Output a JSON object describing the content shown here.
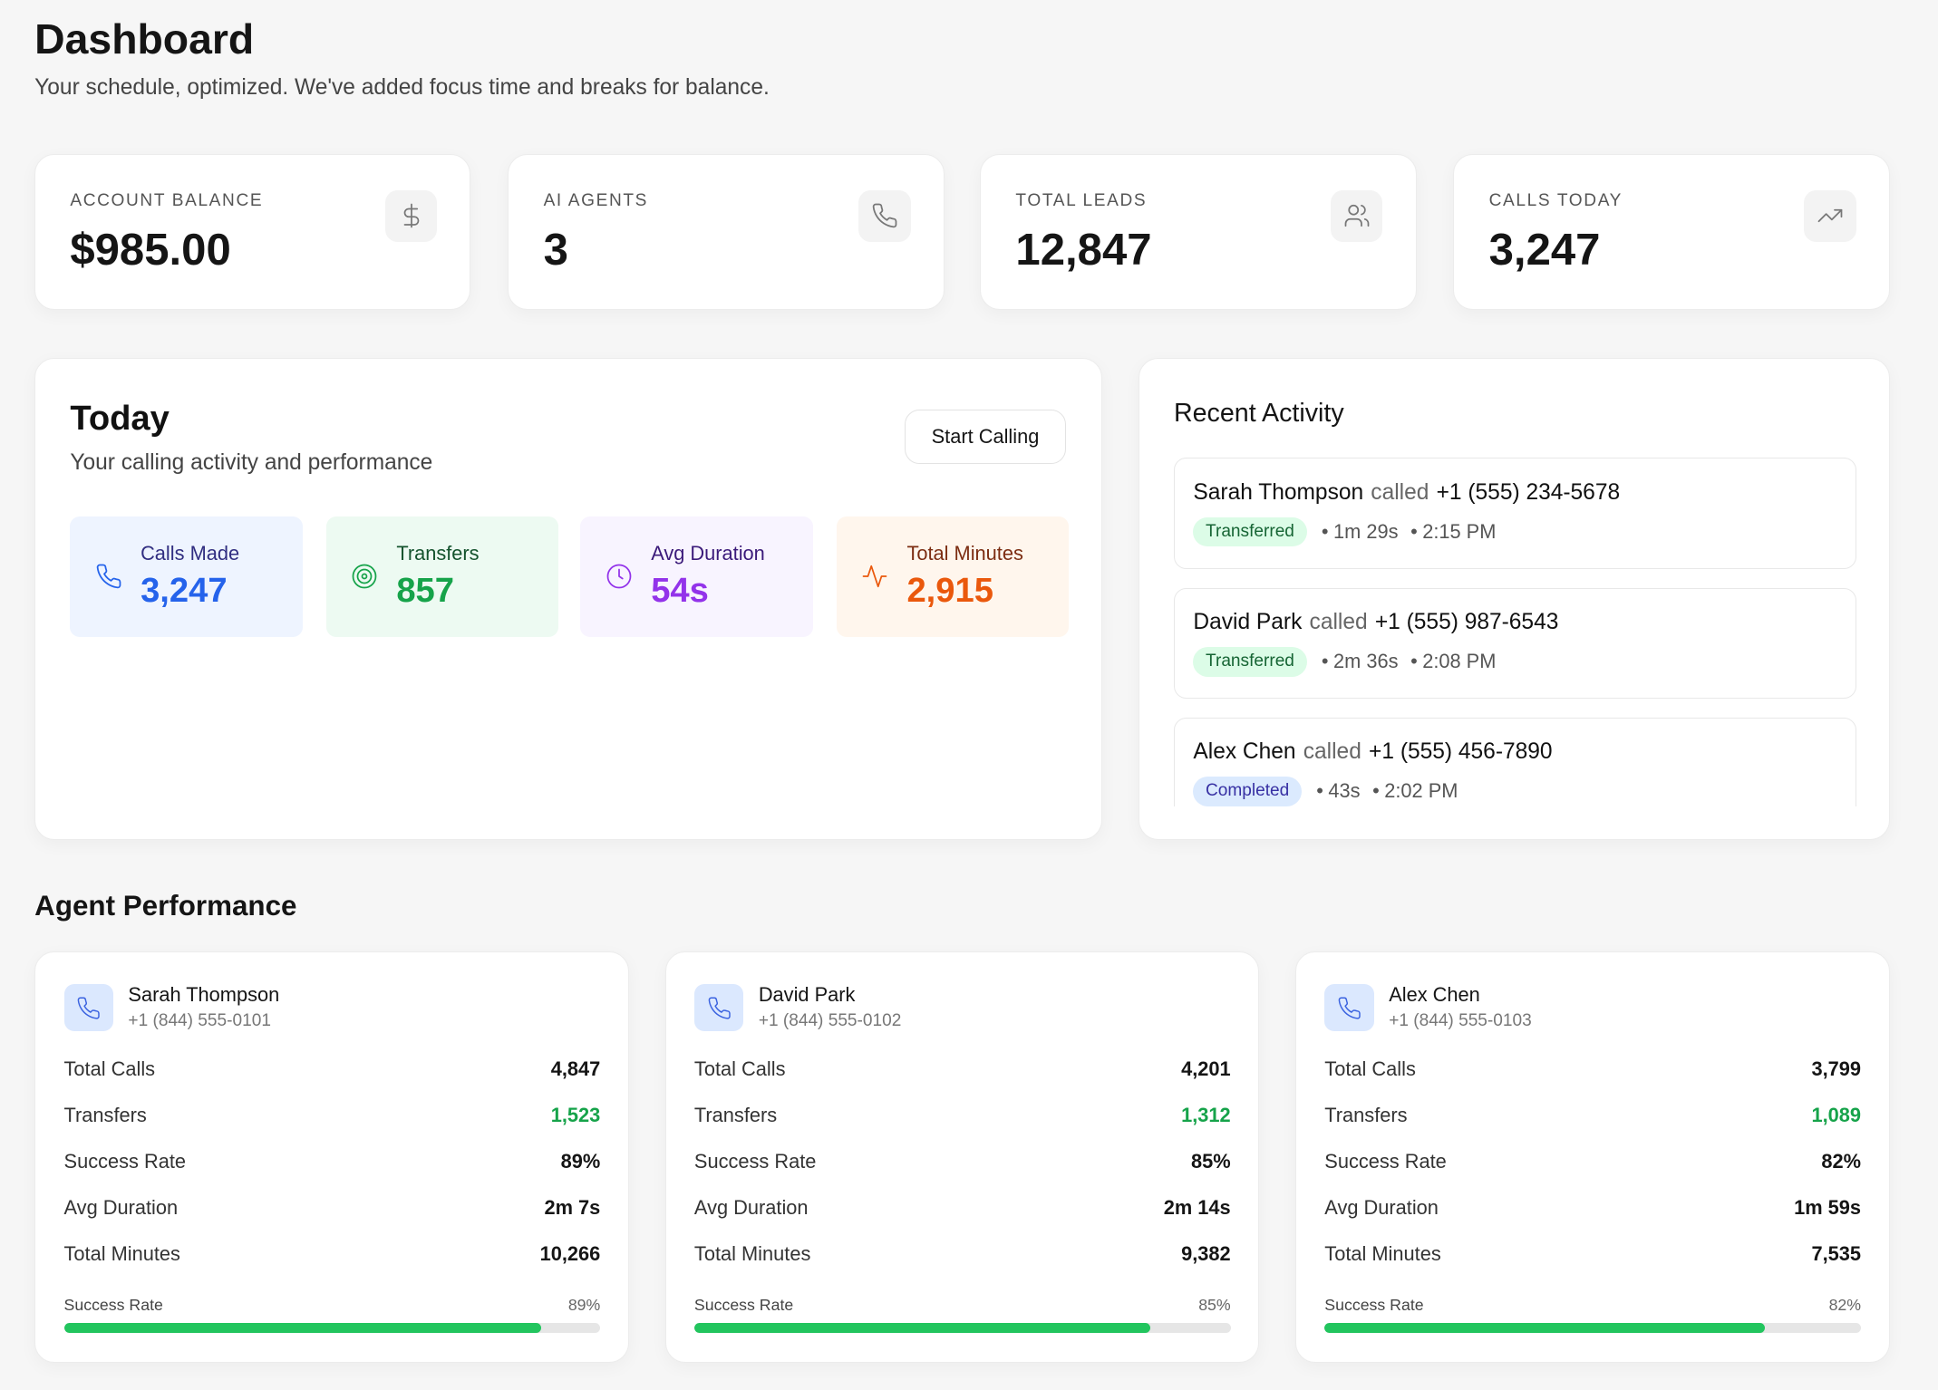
{
  "header": {
    "title": "Dashboard",
    "subtitle": "Your schedule, optimized. We've added focus time and breaks for balance."
  },
  "stats": [
    {
      "label": "ACCOUNT BALANCE",
      "value": "$985.00",
      "icon": "dollar-icon"
    },
    {
      "label": "AI AGENTS",
      "value": "3",
      "icon": "phone-icon"
    },
    {
      "label": "TOTAL LEADS",
      "value": "12,847",
      "icon": "users-icon"
    },
    {
      "label": "CALLS TODAY",
      "value": "3,247",
      "icon": "trending-up-icon"
    }
  ],
  "today": {
    "title": "Today",
    "subtitle": "Your calling activity and performance",
    "button": "Start Calling",
    "metrics": [
      {
        "label": "Calls Made",
        "value": "3,247",
        "icon": "phone-icon",
        "bg": "#eef4ff",
        "label_color": "#312e81",
        "value_color": "#2563eb"
      },
      {
        "label": "Transfers",
        "value": "857",
        "icon": "target-icon",
        "bg": "#edfaf2",
        "label_color": "#14532d",
        "value_color": "#16a34a"
      },
      {
        "label": "Avg Duration",
        "value": "54s",
        "icon": "clock-icon",
        "bg": "#f8f4ff",
        "label_color": "#3b1a7a",
        "value_color": "#9333ea"
      },
      {
        "label": "Total Minutes",
        "value": "2,915",
        "icon": "activity-icon",
        "bg": "#fff6ed",
        "label_color": "#7c2d12",
        "value_color": "#ea580c"
      }
    ]
  },
  "recent": {
    "title": "Recent Activity",
    "items": [
      {
        "name": "Sarah Thompson",
        "verb": "called",
        "number": "+1 (555) 234-5678",
        "status": "Transferred",
        "duration": "1m 29s",
        "time": "2:15 PM"
      },
      {
        "name": "David Park",
        "verb": "called",
        "number": "+1 (555) 987-6543",
        "status": "Transferred",
        "duration": "2m 36s",
        "time": "2:08 PM"
      },
      {
        "name": "Alex Chen",
        "verb": "called",
        "number": "+1 (555) 456-7890",
        "status": "Completed",
        "duration": "43s",
        "time": "2:02 PM"
      }
    ]
  },
  "agents": {
    "title": "Agent Performance",
    "labels": {
      "total_calls": "Total Calls",
      "transfers": "Transfers",
      "success_rate": "Success Rate",
      "avg_duration": "Avg Duration",
      "total_minutes": "Total Minutes",
      "bar_label": "Success Rate"
    },
    "list": [
      {
        "name": "Sarah Thompson",
        "phone": "+1 (844) 555-0101",
        "total_calls": "4,847",
        "transfers": "1,523",
        "success_rate": "89%",
        "avg_duration": "2m 7s",
        "total_minutes": "10,266",
        "progress": 89
      },
      {
        "name": "David Park",
        "phone": "+1 (844) 555-0102",
        "total_calls": "4,201",
        "transfers": "1,312",
        "success_rate": "85%",
        "avg_duration": "2m 14s",
        "total_minutes": "9,382",
        "progress": 85
      },
      {
        "name": "Alex Chen",
        "phone": "+1 (844) 555-0103",
        "total_calls": "3,799",
        "transfers": "1,089",
        "success_rate": "82%",
        "avg_duration": "1m 59s",
        "total_minutes": "7,535",
        "progress": 82
      }
    ]
  }
}
